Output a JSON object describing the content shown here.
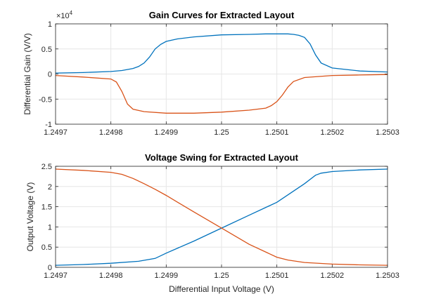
{
  "chart_data": [
    {
      "type": "line",
      "title": "Gain Curves for Extracted Layout",
      "xlabel": "",
      "ylabel": "Differential Gain (V/V)",
      "exponent_label": "×10",
      "exponent_power": "4",
      "xlim": [
        1.2497,
        1.2503
      ],
      "ylim": [
        -1,
        1
      ],
      "grid": true,
      "x_ticks": [
        "1.2497",
        "1.2498",
        "1.2499",
        "1.25",
        "1.2501",
        "1.2502",
        "1.2503"
      ],
      "x_tick_values": [
        1.2497,
        1.2498,
        1.2499,
        1.25,
        1.2501,
        1.2502,
        1.2503
      ],
      "y_ticks": [
        "-1",
        "-0.5",
        "0",
        "0.5",
        "1"
      ],
      "y_tick_values": [
        -1,
        -0.5,
        0,
        0.5,
        1
      ],
      "colors": [
        "#0072BD",
        "#D95319"
      ],
      "series": [
        {
          "x": [
            1.2497,
            1.24975,
            1.2498,
            1.24982,
            1.24984,
            1.24985,
            1.24986,
            1.24987,
            1.24988,
            1.24989,
            1.2499,
            1.24992,
            1.24995,
            1.25,
            1.25005,
            1.25008,
            1.2501,
            1.25012,
            1.25013,
            1.25014,
            1.25015,
            1.25016,
            1.25017,
            1.25018,
            1.2502,
            1.25025,
            1.2503
          ],
          "values": [
            0.02,
            0.03,
            0.05,
            0.07,
            0.11,
            0.15,
            0.22,
            0.34,
            0.5,
            0.59,
            0.65,
            0.7,
            0.74,
            0.78,
            0.79,
            0.8,
            0.8,
            0.8,
            0.79,
            0.77,
            0.73,
            0.6,
            0.38,
            0.22,
            0.12,
            0.06,
            0.04
          ]
        },
        {
          "x": [
            1.2497,
            1.24975,
            1.2498,
            1.24981,
            1.24982,
            1.24983,
            1.24984,
            1.24986,
            1.2499,
            1.24995,
            1.25,
            1.25005,
            1.25008,
            1.25009,
            1.2501,
            1.25011,
            1.25012,
            1.25013,
            1.25015,
            1.2502,
            1.25025,
            1.2503
          ],
          "values": [
            -0.03,
            -0.06,
            -0.1,
            -0.16,
            -0.35,
            -0.6,
            -0.7,
            -0.75,
            -0.78,
            -0.78,
            -0.76,
            -0.72,
            -0.68,
            -0.63,
            -0.55,
            -0.42,
            -0.26,
            -0.15,
            -0.07,
            -0.03,
            -0.02,
            -0.01
          ]
        }
      ]
    },
    {
      "type": "line",
      "title": "Voltage Swing for Extracted Layout",
      "xlabel": "Differential Input Voltage (V)",
      "ylabel": "Output Voltage (V)",
      "xlim": [
        1.2497,
        1.2503
      ],
      "ylim": [
        0,
        2.5
      ],
      "grid": true,
      "x_ticks": [
        "1.2497",
        "1.2498",
        "1.2499",
        "1.25",
        "1.2501",
        "1.2502",
        "1.2503"
      ],
      "x_tick_values": [
        1.2497,
        1.2498,
        1.2499,
        1.25,
        1.2501,
        1.2502,
        1.2503
      ],
      "y_ticks": [
        "0",
        "0.5",
        "1",
        "1.5",
        "2",
        "2.5"
      ],
      "y_tick_values": [
        0,
        0.5,
        1,
        1.5,
        2,
        2.5
      ],
      "colors": [
        "#0072BD",
        "#D95319"
      ],
      "series": [
        {
          "x": [
            1.2497,
            1.24975,
            1.2498,
            1.24985,
            1.24988,
            1.2499,
            1.24995,
            1.25,
            1.25005,
            1.2501,
            1.25015,
            1.25017,
            1.25018,
            1.2502,
            1.25025,
            1.2503
          ],
          "values": [
            0.05,
            0.07,
            0.1,
            0.15,
            0.22,
            0.35,
            0.65,
            0.97,
            1.29,
            1.61,
            2.07,
            2.28,
            2.33,
            2.37,
            2.41,
            2.43
          ]
        },
        {
          "x": [
            1.2497,
            1.24975,
            1.2498,
            1.24982,
            1.24984,
            1.24986,
            1.24988,
            1.2499,
            1.24995,
            1.25,
            1.25005,
            1.2501,
            1.25012,
            1.25015,
            1.2502,
            1.25025,
            1.2503
          ],
          "values": [
            2.43,
            2.4,
            2.35,
            2.3,
            2.2,
            2.07,
            1.93,
            1.78,
            1.37,
            0.97,
            0.57,
            0.25,
            0.18,
            0.12,
            0.08,
            0.06,
            0.05
          ]
        }
      ]
    }
  ]
}
